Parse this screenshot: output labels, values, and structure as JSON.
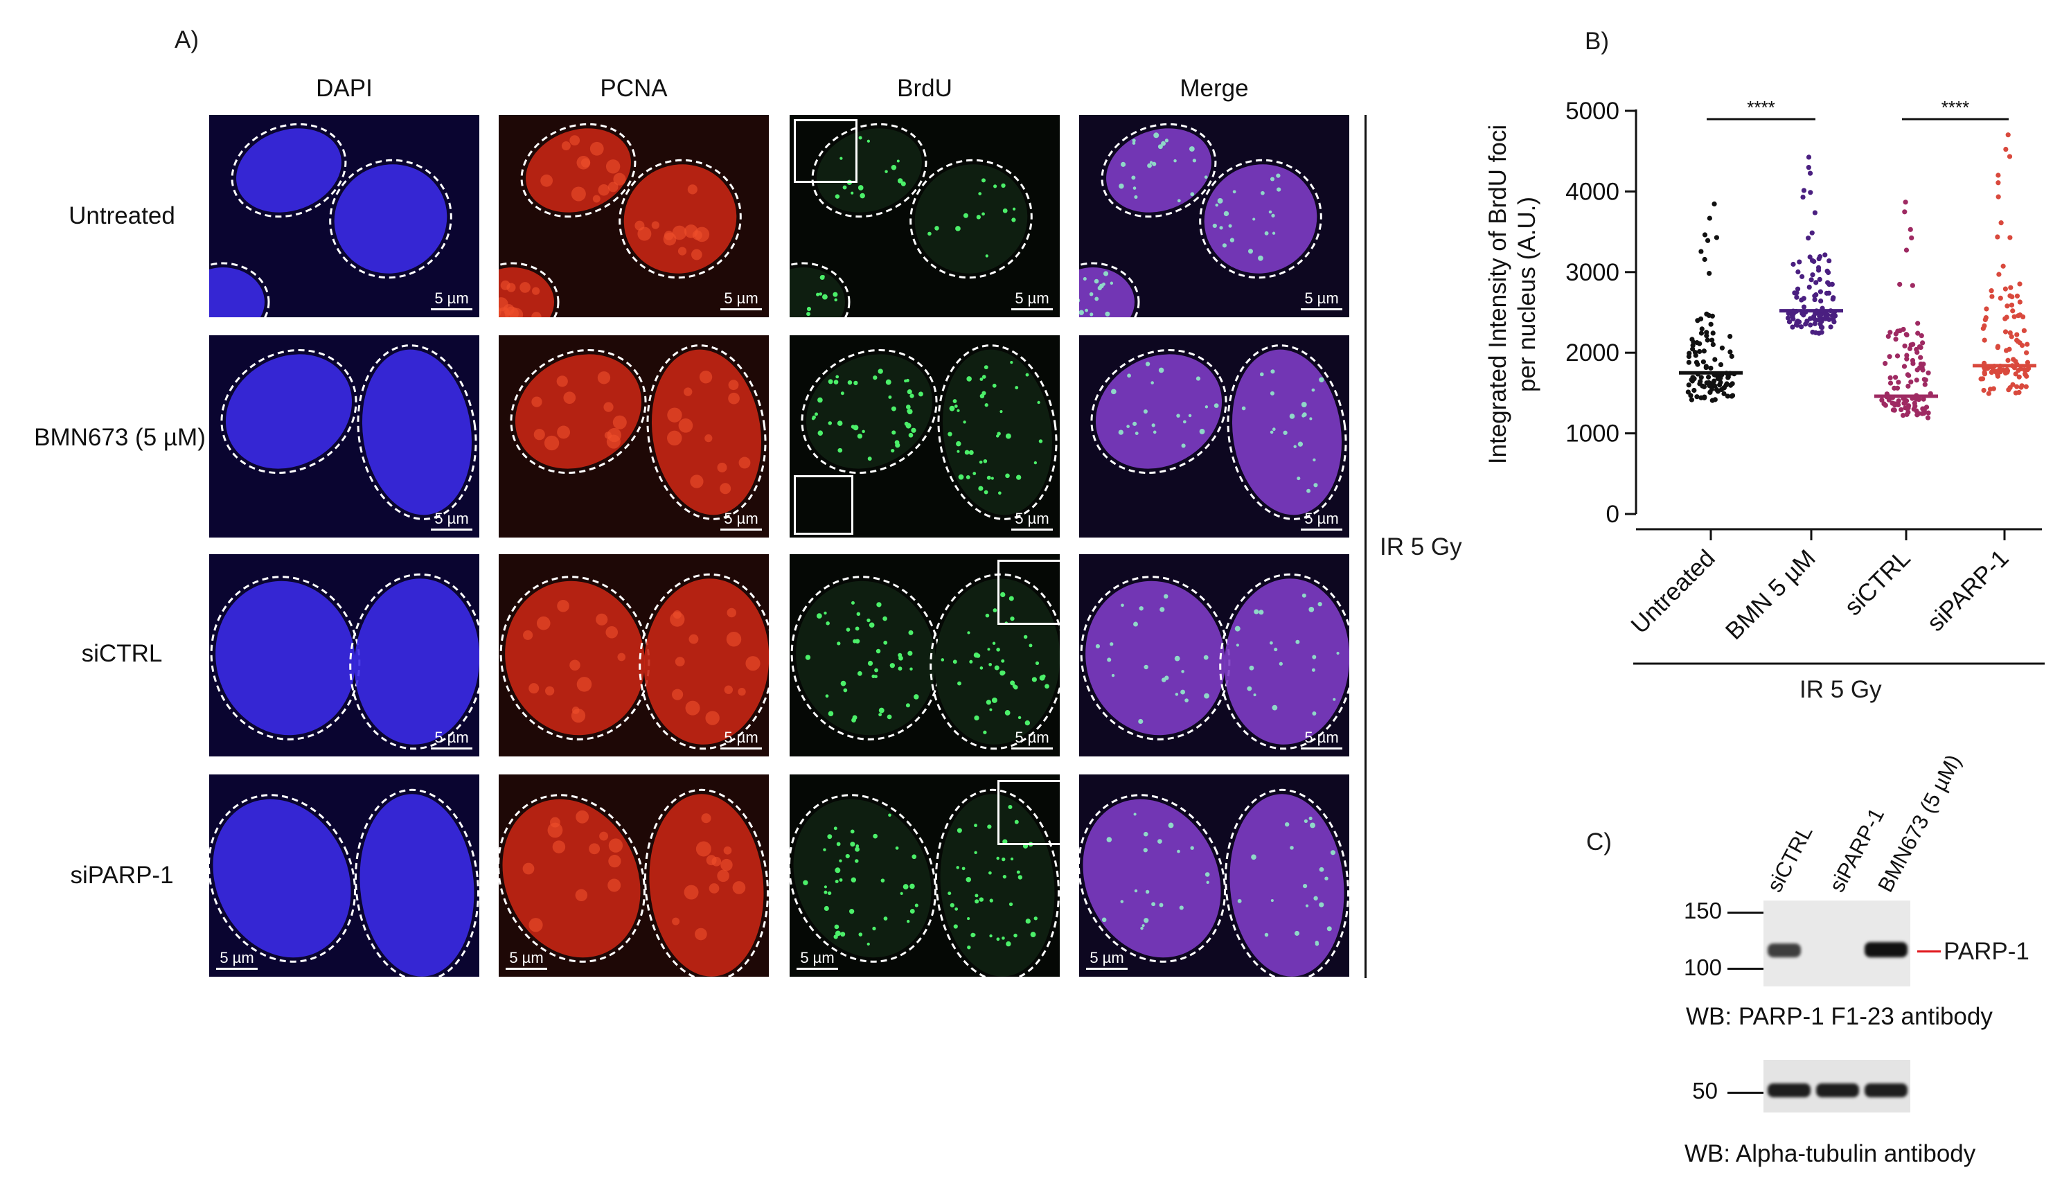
{
  "panel_a": {
    "letter": "A)",
    "columns": [
      "DAPI",
      "PCNA",
      "BrdU",
      "Merge"
    ],
    "rows": [
      "Untreated",
      "BMN673 (5 µM)",
      "siCTRL",
      "siPARP-1"
    ],
    "scale_bar": "5 µm",
    "side_label": "IR 5 Gy",
    "colors": {
      "dapi": "#2c1de0",
      "pcna": "#d62a10",
      "brdu": "#2ec84a",
      "merge": "#8a3fd0"
    }
  },
  "panel_b": {
    "letter": "B)",
    "bottom_label": "IR 5 Gy",
    "significance": [
      "****",
      "****"
    ]
  },
  "chart_data": {
    "type": "scatter",
    "ylabel_line1": "Integrated Intensity of BrdU foci",
    "ylabel_line2": "per nucleus (A.U.)",
    "ylim": [
      0,
      5000
    ],
    "yticks": [
      "0",
      "1000",
      "2000",
      "3000",
      "4000",
      "5000"
    ],
    "categories": [
      "Untreated",
      "BMN 5 µM",
      "siCTRL",
      "siPARP-1"
    ],
    "series": [
      {
        "category": "Untreated",
        "color": "#111111",
        "median": 1750,
        "min": 1350,
        "max": 3950,
        "n": 110
      },
      {
        "category": "BMN 5 µM",
        "color": "#4a1f80",
        "median": 2520,
        "min": 2200,
        "max": 4450,
        "n": 110
      },
      {
        "category": "siCTRL",
        "color": "#9e2a62",
        "median": 1460,
        "min": 1150,
        "max": 3900,
        "n": 110
      },
      {
        "category": "siPARP-1",
        "color": "#d9493d",
        "median": 1840,
        "min": 1450,
        "max": 4750,
        "n": 110
      }
    ]
  },
  "panel_c": {
    "letter": "C)",
    "lanes": [
      "siCTRL",
      "siPARP-1",
      "BMN673 (5 µM)"
    ],
    "blot1": {
      "markers": [
        "150",
        "100"
      ],
      "band_label": "PARP-1",
      "caption": "WB: PARP-1 F1-23 antibody"
    },
    "blot2": {
      "markers": [
        "50"
      ],
      "caption": "WB: Alpha-tubulin antibody"
    }
  }
}
